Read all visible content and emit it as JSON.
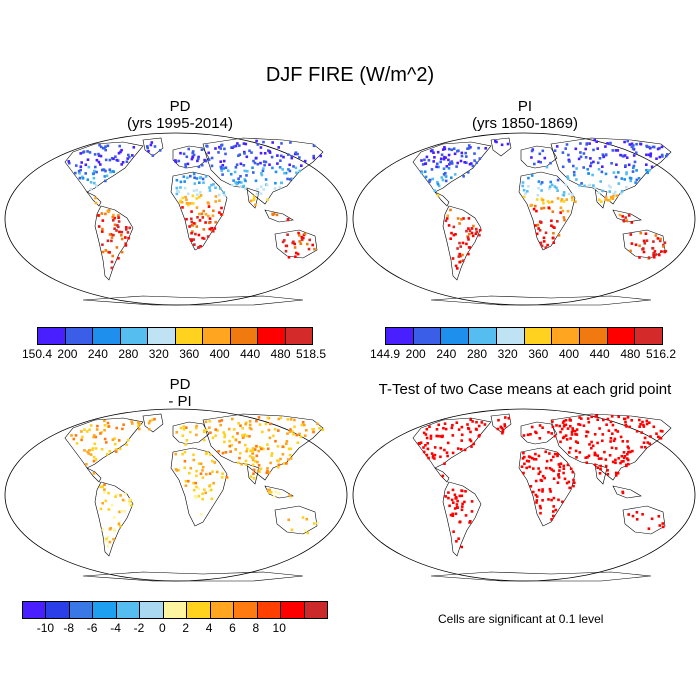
{
  "figure_title": "DJF FIRE (W/m^2)",
  "panels": {
    "pd": {
      "title_line1": "PD",
      "title_line2": "(yrs 1995-2014)"
    },
    "pi": {
      "title_line1": "PI",
      "title_line2": "(yrs 1850-1869)"
    },
    "diff": {
      "title_line1": "PD",
      "title_line2": "- PI"
    },
    "ttest": {
      "title_line1": "T-Test of two Case means at each grid point"
    }
  },
  "colorbars": {
    "pd": {
      "colors": [
        "#4a1fff",
        "#3a5ee8",
        "#1f8fee",
        "#55bdf0",
        "#bfe3f3",
        "#ffd21f",
        "#ffa51f",
        "#f07a10",
        "#ff0000",
        "#d42a2a"
      ],
      "labels": [
        "150.4",
        "200",
        "240",
        "280",
        "320",
        "360",
        "400",
        "440",
        "480",
        "518.5"
      ]
    },
    "pi": {
      "colors": [
        "#4a1fff",
        "#3a5ee8",
        "#1f8fee",
        "#55bdf0",
        "#bfe3f3",
        "#ffd21f",
        "#ffa51f",
        "#f07a10",
        "#ff0000",
        "#d42a2a"
      ],
      "labels": [
        "144.9",
        "200",
        "240",
        "280",
        "320",
        "360",
        "400",
        "440",
        "480",
        "516.2"
      ]
    },
    "diff": {
      "colors": [
        "#4a1fff",
        "#2b3fe8",
        "#3a78e6",
        "#1f9ff0",
        "#55bdf0",
        "#a9d8f0",
        "#fff4a0",
        "#ffd21f",
        "#ffa51f",
        "#ff7a10",
        "#ff4000",
        "#ff0000",
        "#cc2a2a"
      ],
      "labels": [
        "-10",
        "-8",
        "-6",
        "-4",
        "-2",
        "0",
        "2",
        "4",
        "6",
        "8",
        "10"
      ]
    }
  },
  "significance_note": "Cells are significant at 0.1 level"
}
